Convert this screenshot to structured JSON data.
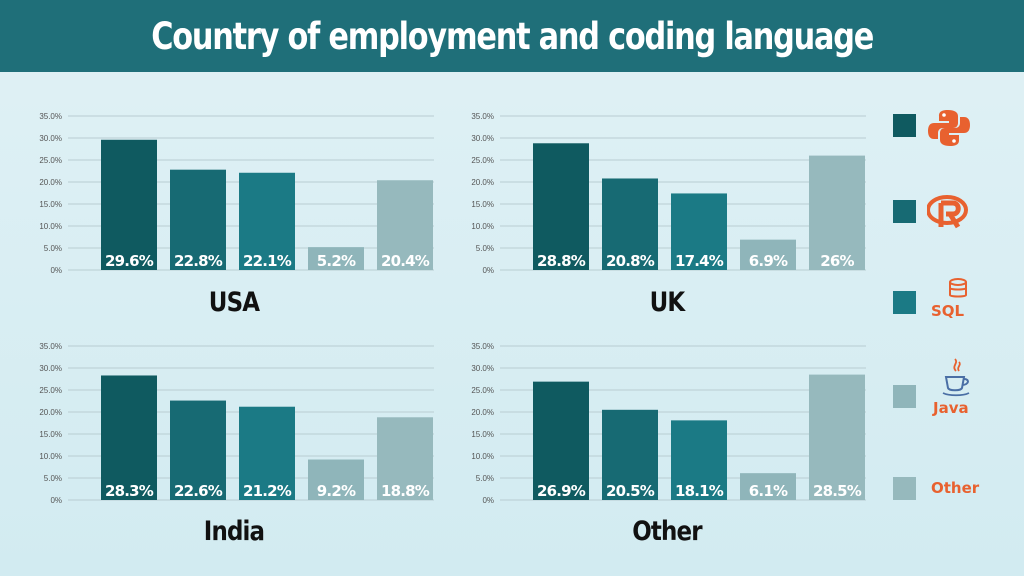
{
  "title": "Country of employment and coding language",
  "colors": {
    "header_bg": "#1f6f79",
    "python": "#0f5a60",
    "r": "#176a73",
    "sql": "#1b7a85",
    "java": "#8fb5ba",
    "other": "#96b9bd",
    "icon_orange": "#e8612f"
  },
  "legend": {
    "items": [
      {
        "key": "python",
        "icon": "python-icon"
      },
      {
        "key": "r",
        "icon": "r-icon"
      },
      {
        "key": "sql",
        "icon": "sql-icon",
        "text": "SQL"
      },
      {
        "key": "java",
        "icon": "java-icon",
        "text": "Java"
      },
      {
        "key": "other",
        "icon": "",
        "text": "Other"
      }
    ]
  },
  "chart_data": [
    {
      "type": "bar",
      "title": "USA",
      "categories": [
        "python",
        "r",
        "sql",
        "java",
        "other"
      ],
      "values": [
        29.6,
        22.8,
        22.1,
        5.2,
        20.4
      ],
      "labels": [
        "29.6%",
        "22.8%",
        "22.1%",
        "5.2%",
        "20.4%"
      ],
      "ylim": [
        0,
        35
      ],
      "yticks": [
        "0%",
        "5.0%",
        "10.0%",
        "15.0%",
        "20.0%",
        "25.0%",
        "30.0%",
        "35.0%"
      ],
      "grid": true
    },
    {
      "type": "bar",
      "title": "UK",
      "categories": [
        "python",
        "r",
        "sql",
        "java",
        "other"
      ],
      "values": [
        28.8,
        20.8,
        17.4,
        6.9,
        26
      ],
      "labels": [
        "28.8%",
        "20.8%",
        "17.4%",
        "6.9%",
        "26%"
      ],
      "ylim": [
        0,
        35
      ],
      "yticks": [
        "0%",
        "5.0%",
        "10.0%",
        "15.0%",
        "20.0%",
        "25.0%",
        "30.0%",
        "35.0%"
      ],
      "grid": true
    },
    {
      "type": "bar",
      "title": "India",
      "categories": [
        "python",
        "r",
        "sql",
        "java",
        "other"
      ],
      "values": [
        28.3,
        22.6,
        21.2,
        9.2,
        18.8
      ],
      "labels": [
        "28.3%",
        "22.6%",
        "21.2%",
        "9.2%",
        "18.8%"
      ],
      "ylim": [
        0,
        35
      ],
      "yticks": [
        "0%",
        "5.0%",
        "10.0%",
        "15.0%",
        "20.0%",
        "25.0%",
        "30.0%",
        "35.0%"
      ],
      "grid": true
    },
    {
      "type": "bar",
      "title": "Other",
      "categories": [
        "python",
        "r",
        "sql",
        "java",
        "other"
      ],
      "values": [
        26.9,
        20.5,
        18.1,
        6.1,
        28.5
      ],
      "labels": [
        "26.9%",
        "20.5%",
        "18.1%",
        "6.1%",
        "28.5%"
      ],
      "ylim": [
        0,
        35
      ],
      "yticks": [
        "0%",
        "5.0%",
        "10.0%",
        "15.0%",
        "20.0%",
        "25.0%",
        "30.0%",
        "35.0%"
      ],
      "grid": true
    }
  ]
}
